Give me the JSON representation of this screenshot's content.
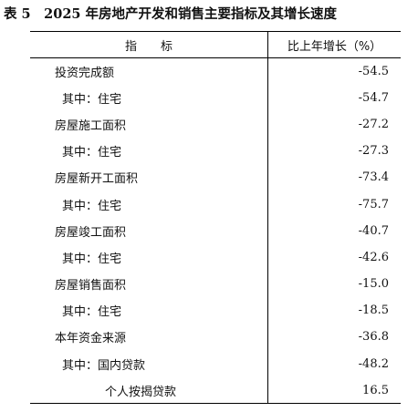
{
  "title": "表 5　2025 年房地产开发和销售主要指标及其增长速度",
  "table": {
    "header": [
      "指　　标",
      "比上年增长（%）"
    ],
    "rows": [
      [
        "投资完成额",
        "-54.5"
      ],
      [
        "其中：住宅",
        "-54.7"
      ],
      [
        "房屋施工面积",
        "-27.2"
      ],
      [
        "其中：住宅",
        "-27.3"
      ],
      [
        "房屋新开工面积",
        "-73.4"
      ],
      [
        "其中：住宅",
        "-75.7"
      ],
      [
        "房屋竣工面积",
        "-40.7"
      ],
      [
        "其中：住宅",
        "-42.6"
      ],
      [
        "房屋销售面积",
        "-15.0"
      ],
      [
        "其中：住宅",
        "-18.5"
      ],
      [
        "本年资金来源",
        "-36.8"
      ],
      [
        "其中：国内贷款",
        "-48.2"
      ],
      [
        "个人按揭贷款",
        "16.5"
      ]
    ]
  }
}
